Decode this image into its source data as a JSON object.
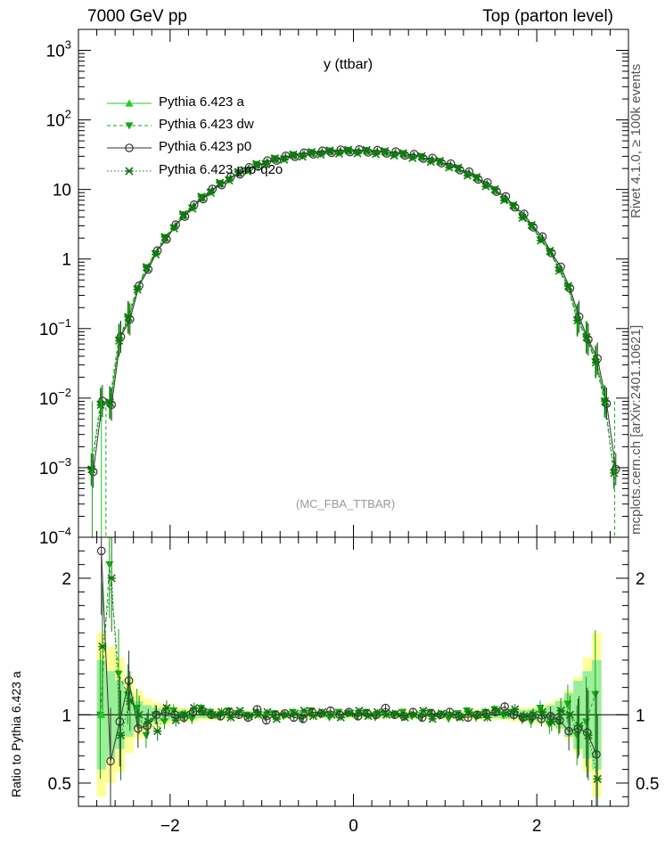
{
  "header": {
    "left": "7000 GeV pp",
    "right": "Top (parton level)"
  },
  "side_labels": {
    "top": "Rivet 4.1.0, ≥ 100k events",
    "bottom": "mcplots.cern.ch [arXiv:2401.10621]"
  },
  "colors": {
    "a": "#22cc22",
    "dw": "#11aa11",
    "p0": "#333333",
    "pro": "#117711",
    "band_yellow": "#ffff99",
    "band_green": "#99ee99"
  },
  "chart_data": [
    {
      "type": "line",
      "title": "y (ttbar)",
      "annotation": "(MC_FBA_TTBAR)",
      "xlabel": "",
      "ylabel": "",
      "xlim": [
        -3.0,
        3.0
      ],
      "ylim": [
        0.0001,
        2000
      ],
      "yscale": "log",
      "yticks": [
        {
          "value": 1000,
          "label": "10^3"
        },
        {
          "value": 100,
          "label": "10^2"
        },
        {
          "value": 10,
          "label": "10"
        },
        {
          "value": 1,
          "label": "1"
        },
        {
          "value": 0.1,
          "label": "10^-1"
        },
        {
          "value": 0.01,
          "label": "10^-2"
        },
        {
          "value": 0.001,
          "label": "10^-3"
        },
        {
          "value": 0.0001,
          "label": "10^-4"
        }
      ],
      "legend_position": "top-left",
      "series": [
        {
          "name": "Pythia 6.423 a",
          "style": "solid-triangle-up"
        },
        {
          "name": "Pythia 6.423 dw",
          "style": "dashed-triangle-down"
        },
        {
          "name": "Pythia 6.423 p0",
          "style": "solid-open-circle"
        },
        {
          "name": "Pythia 6.423 pro-q2o",
          "style": "dotted-star"
        }
      ],
      "x": [
        -2.85,
        -2.75,
        -2.65,
        -2.55,
        -2.45,
        -2.35,
        -2.25,
        -2.15,
        -2.05,
        -1.95,
        -1.85,
        -1.75,
        -1.65,
        -1.55,
        -1.45,
        -1.35,
        -1.25,
        -1.15,
        -1.05,
        -0.95,
        -0.85,
        -0.75,
        -0.65,
        -0.55,
        -0.45,
        -0.35,
        -0.25,
        -0.15,
        -0.05,
        0.05,
        0.15,
        0.25,
        0.35,
        0.45,
        0.55,
        0.65,
        0.75,
        0.85,
        0.95,
        1.05,
        1.15,
        1.25,
        1.35,
        1.45,
        1.55,
        1.65,
        1.75,
        1.85,
        1.95,
        2.05,
        2.15,
        2.25,
        2.35,
        2.45,
        2.55,
        2.65,
        2.75,
        2.85
      ],
      "reference_values": [
        0.0009,
        0.0086,
        0.0083,
        0.072,
        0.14,
        0.39,
        0.73,
        1.25,
        1.98,
        2.95,
        4.2,
        5.7,
        7.5,
        9.6,
        11.9,
        14.4,
        17.0,
        19.6,
        22.2,
        24.6,
        26.8,
        28.7,
        30.4,
        31.8,
        33.0,
        34.0,
        34.7,
        35.2,
        35.5,
        35.5,
        35.2,
        34.7,
        34.0,
        33.0,
        31.8,
        30.4,
        28.7,
        26.8,
        24.6,
        22.2,
        19.6,
        17.0,
        14.4,
        11.9,
        9.6,
        7.5,
        5.7,
        4.2,
        2.95,
        1.98,
        1.25,
        0.73,
        0.39,
        0.14,
        0.072,
        0.035,
        0.0086,
        0.0009
      ]
    },
    {
      "type": "line",
      "title": "",
      "xlabel": "",
      "ylabel": "Ratio to Pythia 6.423 a",
      "xlim": [
        -3.0,
        3.0
      ],
      "ylim": [
        0.33,
        2.3
      ],
      "xticks": [
        {
          "value": -2,
          "label": "−2"
        },
        {
          "value": 0,
          "label": "0"
        },
        {
          "value": 2,
          "label": "2"
        }
      ],
      "yticks": [
        {
          "value": 0.5,
          "label": "0.5"
        },
        {
          "value": 1,
          "label": "1"
        },
        {
          "value": 2,
          "label": "2"
        }
      ],
      "x": [
        -2.75,
        -2.65,
        -2.55,
        -2.45,
        -2.35,
        -2.25,
        -2.15,
        -2.05,
        -1.95,
        -1.85,
        -1.75,
        -1.65,
        -1.55,
        -1.45,
        -1.35,
        -1.25,
        -1.15,
        -1.05,
        -0.95,
        -0.85,
        -0.75,
        -0.65,
        -0.55,
        -0.45,
        -0.35,
        -0.25,
        -0.15,
        -0.05,
        0.05,
        0.15,
        0.25,
        0.35,
        0.45,
        0.55,
        0.65,
        0.75,
        0.85,
        0.95,
        1.05,
        1.15,
        1.25,
        1.35,
        1.45,
        1.55,
        1.65,
        1.75,
        1.85,
        1.95,
        2.05,
        2.15,
        2.25,
        2.35,
        2.45,
        2.55,
        2.65
      ],
      "band_yellow_halfwidth": [
        0.6,
        0.5,
        0.42,
        0.28,
        0.18,
        0.12,
        0.09,
        0.07,
        0.06,
        0.05,
        0.05,
        0.04,
        0.04,
        0.04,
        0.035,
        0.03,
        0.03,
        0.03,
        0.03,
        0.03,
        0.03,
        0.03,
        0.03,
        0.03,
        0.03,
        0.03,
        0.03,
        0.03,
        0.03,
        0.03,
        0.03,
        0.03,
        0.03,
        0.03,
        0.03,
        0.03,
        0.03,
        0.03,
        0.03,
        0.03,
        0.035,
        0.04,
        0.04,
        0.04,
        0.04,
        0.05,
        0.05,
        0.06,
        0.07,
        0.09,
        0.12,
        0.18,
        0.28,
        0.42,
        0.6
      ],
      "band_green_halfwidth": [
        0.4,
        0.32,
        0.25,
        0.16,
        0.1,
        0.07,
        0.05,
        0.04,
        0.035,
        0.03,
        0.03,
        0.025,
        0.025,
        0.025,
        0.02,
        0.02,
        0.02,
        0.02,
        0.02,
        0.02,
        0.02,
        0.02,
        0.02,
        0.02,
        0.02,
        0.02,
        0.02,
        0.02,
        0.02,
        0.02,
        0.02,
        0.02,
        0.02,
        0.02,
        0.02,
        0.02,
        0.02,
        0.02,
        0.02,
        0.02,
        0.02,
        0.025,
        0.025,
        0.025,
        0.03,
        0.03,
        0.035,
        0.04,
        0.05,
        0.07,
        0.1,
        0.16,
        0.25,
        0.32,
        0.4
      ],
      "series": [
        {
          "name": "Pythia 6.423 dw",
          "values": [
            1.0,
            2.1,
            1.3,
            1.15,
            1.05,
            0.85,
            1.0,
            0.95,
            1.03,
            1.0,
            0.97,
            1.05,
            1.02,
            0.99,
            1.03,
            1.01,
            1.0,
            1.02,
            0.98,
            1.01,
            0.99,
            1.02,
            0.97,
            1.03,
            1.0,
            0.98,
            1.02,
            1.01,
            0.99,
            1.02,
            0.98,
            1.01,
            1.0,
            1.02,
            0.99,
            0.98,
            1.02,
            0.99,
            0.97,
            1.01,
            1.03,
            0.98,
            1.02,
            1.04,
            1.0,
            1.02,
            0.97,
            0.95,
            1.05,
            0.93,
            0.95,
            1.08,
            0.85,
            0.95,
            1.15
          ]
        },
        {
          "name": "Pythia 6.423 p0",
          "values": [
            2.2,
            0.66,
            0.95,
            1.25,
            0.9,
            0.92,
            1.0,
            1.02,
            1.0,
            0.98,
            1.02,
            1.03,
            1.0,
            0.99,
            1.02,
            1.0,
            0.98,
            1.04,
            0.96,
            1.0,
            1.01,
            0.98,
            0.97,
            1.02,
            1.01,
            1.03,
            1.0,
            1.02,
            0.99,
            1.01,
            1.0,
            1.05,
            1.0,
            0.99,
            1.02,
            0.98,
            1.01,
            1.0,
            1.02,
            0.99,
            0.98,
            1.0,
            1.01,
            1.02,
            1.06,
            1.0,
            0.98,
            0.99,
            0.97,
            0.99,
            0.96,
            0.88,
            0.9,
            0.87,
            0.71
          ]
        },
        {
          "name": "Pythia 6.423 pro-q2o",
          "values": [
            1.5,
            2.0,
            0.85,
            1.1,
            1.0,
            0.95,
            0.88,
            1.05,
            0.96,
            1.0,
            1.05,
            1.02,
            1.0,
            1.02,
            0.98,
            1.03,
            0.99,
            1.0,
            1.02,
            0.97,
            1.0,
            1.01,
            1.03,
            0.99,
            1.02,
            1.0,
            0.98,
            1.01,
            1.03,
            0.99,
            1.02,
            1.0,
            1.01,
            0.98,
            1.0,
            1.03,
            0.97,
            1.01,
            1.0,
            0.98,
            1.02,
            1.0,
            0.98,
            1.03,
            1.01,
            1.04,
            0.99,
            1.0,
            1.02,
            0.95,
            1.03,
            1.0,
            0.92,
            0.85,
            0.53
          ]
        }
      ]
    }
  ]
}
